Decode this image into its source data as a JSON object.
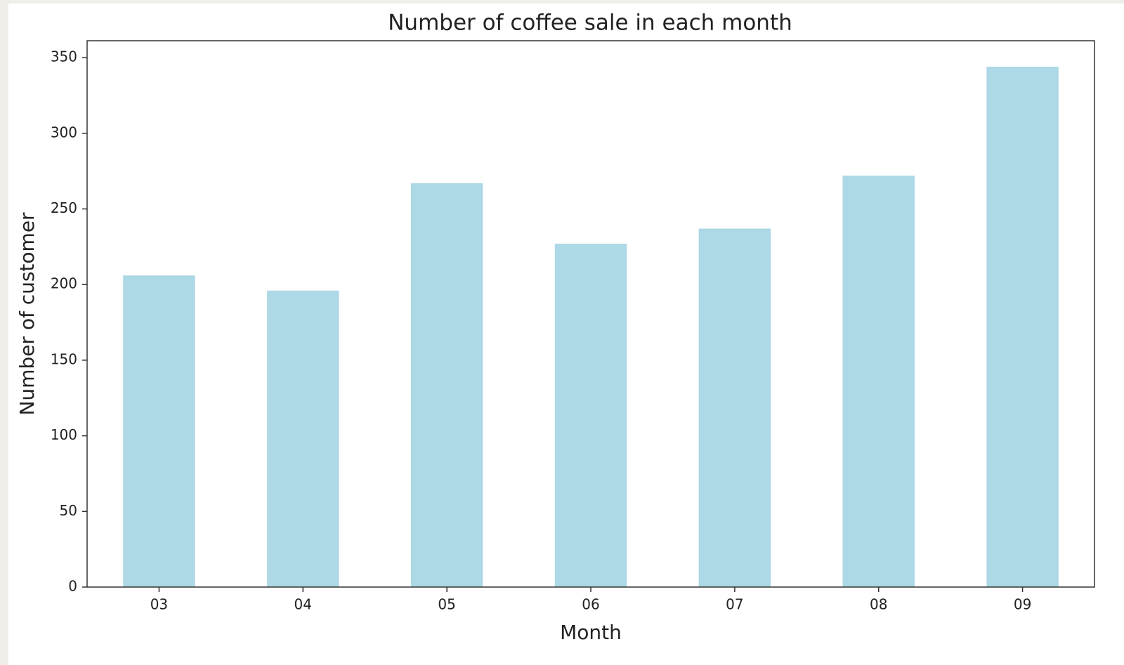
{
  "chart_data": {
    "type": "bar",
    "title": "Number of coffee sale in each month",
    "x_label": "Month",
    "y_label": "Number of customer",
    "categories": [
      "03",
      "04",
      "05",
      "06",
      "07",
      "08",
      "09"
    ],
    "values": [
      206,
      196,
      267,
      227,
      237,
      272,
      344
    ],
    "color": "#add8e6",
    "ylim": [
      0,
      361.2
    ],
    "yticks": [
      0,
      50,
      100,
      150,
      200,
      250,
      300,
      350
    ],
    "grid": false
  }
}
